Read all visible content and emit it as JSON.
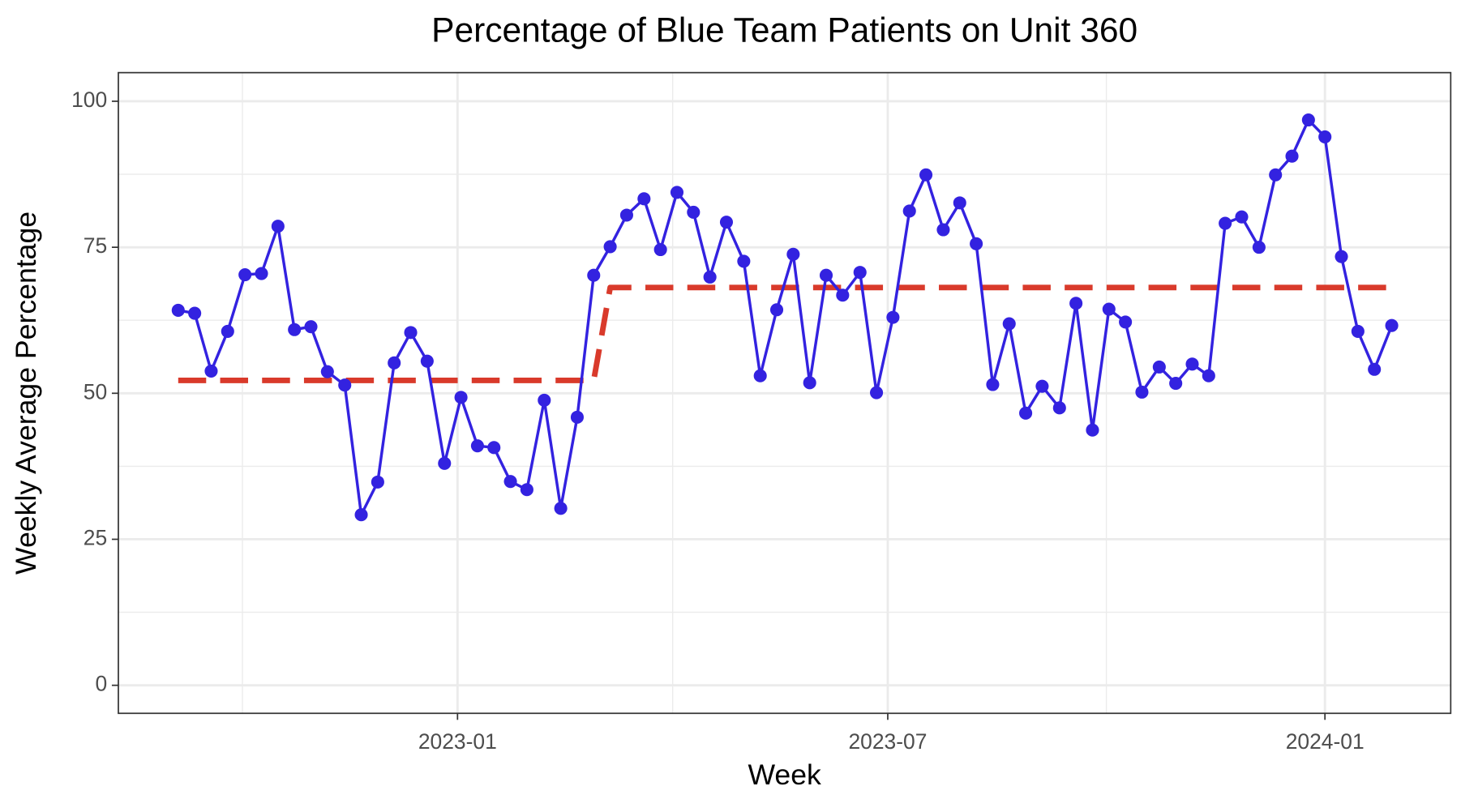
{
  "chart_data": {
    "type": "line",
    "title": "Percentage of Blue Team Patients on Unit 360",
    "x_label": "Week",
    "y_label": "Weekly Average Percentage",
    "x": [
      2022.678,
      2022.697,
      2022.716,
      2022.735,
      2022.755,
      2022.774,
      2022.793,
      2022.812,
      2022.831,
      2022.85,
      2022.87,
      2022.889,
      2022.908,
      2022.927,
      2022.946,
      2022.965,
      2022.985,
      2023.004,
      2023.023,
      2023.042,
      2023.061,
      2023.08,
      2023.1,
      2023.119,
      2023.138,
      2023.157,
      2023.176,
      2023.195,
      2023.215,
      2023.234,
      2023.253,
      2023.272,
      2023.291,
      2023.31,
      2023.33,
      2023.349,
      2023.368,
      2023.387,
      2023.406,
      2023.425,
      2023.444,
      2023.464,
      2023.483,
      2023.502,
      2023.521,
      2023.54,
      2023.56,
      2023.579,
      2023.598,
      2023.617,
      2023.636,
      2023.655,
      2023.674,
      2023.694,
      2023.713,
      2023.732,
      2023.751,
      2023.77,
      2023.789,
      2023.809,
      2023.828,
      2023.847,
      2023.866,
      2023.885,
      2023.904,
      2023.924,
      2023.943,
      2023.962,
      2023.981,
      2024.0,
      2024.019,
      2024.038,
      2024.057,
      2024.077
    ],
    "series": [
      {
        "color": "#3322e0",
        "line_style": "solid",
        "markers": true,
        "values": [
          64.2,
          63.7,
          53.8,
          60.6,
          70.3,
          70.5,
          78.6,
          60.9,
          61.4,
          53.7,
          51.4,
          29.2,
          34.8,
          55.2,
          60.4,
          55.5,
          38.0,
          49.3,
          41.0,
          40.7,
          34.9,
          33.5,
          48.8,
          30.3,
          45.9,
          70.2,
          75.1,
          80.5,
          83.3,
          74.6,
          84.4,
          81.0,
          69.9,
          79.3,
          72.6,
          53.0,
          64.3,
          73.8,
          51.8,
          70.2,
          66.8,
          70.7,
          50.1,
          63.0,
          81.2,
          87.4,
          78.0,
          82.6,
          75.6,
          51.5,
          61.9,
          46.6,
          51.2,
          47.5,
          65.4,
          43.7,
          64.4,
          62.2,
          50.2,
          54.5,
          51.7,
          55.0,
          53.0,
          79.1,
          80.2,
          75.0,
          87.4,
          90.6,
          96.8,
          93.9,
          73.4,
          60.6,
          54.1,
          61.6
        ]
      },
      {
        "color": "#d93a2b",
        "line_style": "dashed",
        "markers": false,
        "values": [
          52.2,
          52.2,
          52.2,
          52.2,
          52.2,
          52.2,
          52.2,
          52.2,
          52.2,
          52.2,
          52.2,
          52.2,
          52.2,
          52.2,
          52.2,
          52.2,
          52.2,
          52.2,
          52.2,
          52.2,
          52.2,
          52.2,
          52.2,
          52.2,
          52.2,
          52.2,
          68.1,
          68.1,
          68.1,
          68.1,
          68.1,
          68.1,
          68.1,
          68.1,
          68.1,
          68.1,
          68.1,
          68.1,
          68.1,
          68.1,
          68.1,
          68.1,
          68.1,
          68.1,
          68.1,
          68.1,
          68.1,
          68.1,
          68.1,
          68.1,
          68.1,
          68.1,
          68.1,
          68.1,
          68.1,
          68.1,
          68.1,
          68.1,
          68.1,
          68.1,
          68.1,
          68.1,
          68.1,
          68.1,
          68.1,
          68.1,
          68.1,
          68.1,
          68.1,
          68.1,
          68.1,
          68.1,
          68.1,
          68.1
        ]
      }
    ],
    "xlim": [
      2022.609,
      2024.145
    ],
    "xticks": [
      {
        "value": 2023.0,
        "label": "2023-01"
      },
      {
        "value": 2023.496,
        "label": "2023-07"
      },
      {
        "value": 2024.0,
        "label": "2024-01"
      }
    ],
    "ylim": [
      -4.8,
      104.9
    ],
    "yticks": [
      0,
      25,
      50,
      75,
      100
    ],
    "grid": true,
    "minor_grid": true
  }
}
